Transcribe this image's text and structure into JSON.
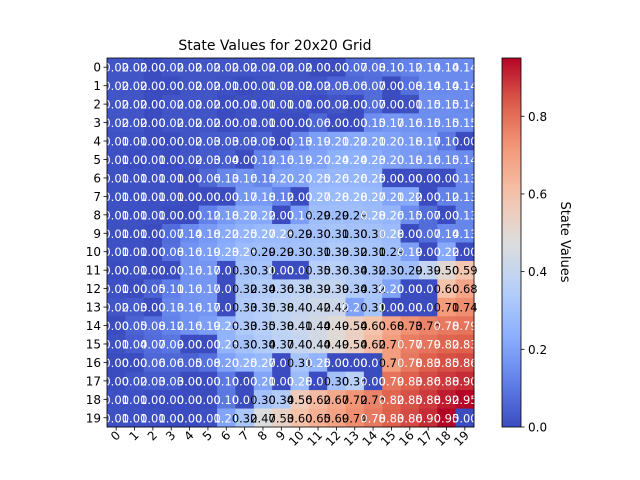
{
  "chart_data": {
    "type": "heatmap",
    "title": "State Values for 20x20 Grid",
    "xlabel": "",
    "ylabel": "",
    "x_ticks": [
      "0",
      "1",
      "2",
      "3",
      "4",
      "5",
      "6",
      "7",
      "8",
      "9",
      "10",
      "11",
      "12",
      "13",
      "14",
      "15",
      "16",
      "17",
      "18",
      "19"
    ],
    "y_ticks": [
      "0",
      "1",
      "2",
      "3",
      "4",
      "5",
      "6",
      "7",
      "8",
      "9",
      "10",
      "11",
      "12",
      "13",
      "14",
      "15",
      "16",
      "17",
      "18",
      "19"
    ],
    "colormap": "coolwarm",
    "vmin": 0.0,
    "vmax": 0.95,
    "colorbar": {
      "label": "State Values",
      "ticks": [
        "0.0",
        "0.2",
        "0.4",
        "0.6",
        "0.8"
      ],
      "tick_values": [
        0.0,
        0.2,
        0.4,
        0.6,
        0.8
      ]
    },
    "values": [
      [
        0.02,
        0.02,
        0.0,
        0.02,
        0.02,
        0.02,
        0.02,
        0.02,
        0.02,
        0.02,
        0.02,
        0.0,
        0.0,
        0.07,
        0.08,
        0.1,
        0.12,
        0.14,
        0.14,
        0.14
      ],
      [
        0.02,
        0.02,
        0.0,
        0.0,
        0.02,
        0.02,
        0.01,
        0.0,
        0.01,
        0.02,
        0.02,
        0.02,
        0.05,
        0.06,
        0.07,
        0.0,
        0.08,
        0.14,
        0.14,
        0.14
      ],
      [
        0.02,
        0.02,
        0.0,
        0.02,
        0.02,
        0.02,
        0.0,
        0.01,
        0.01,
        0.01,
        0.01,
        0.0,
        0.02,
        0.0,
        0.07,
        0.0,
        0.01,
        0.15,
        0.15,
        0.14
      ],
      [
        0.02,
        0.02,
        0.0,
        0.02,
        0.02,
        0.02,
        0.0,
        0.01,
        0.01,
        0.0,
        0.0,
        0.06,
        0.0,
        0.0,
        0.15,
        0.17,
        0.16,
        0.15,
        0.15,
        0.15
      ],
      [
        0.01,
        0.01,
        0.0,
        0.0,
        0.02,
        0.03,
        0.03,
        0.03,
        0.05,
        0.0,
        0.13,
        0.19,
        0.21,
        0.22,
        0.21,
        0.2,
        0.18,
        0.17,
        0.1,
        0.0
      ],
      [
        0.01,
        0.0,
        0.01,
        0.0,
        0.02,
        0.03,
        0.04,
        0.0,
        0.12,
        0.16,
        0.19,
        0.2,
        0.24,
        0.24,
        0.23,
        0.2,
        0.18,
        0.16,
        0.15,
        0.14
      ],
      [
        0.01,
        0.01,
        0.01,
        0.01,
        0.0,
        0.06,
        0.13,
        0.16,
        0.13,
        0.2,
        0.2,
        0.25,
        0.26,
        0.26,
        0.25,
        0.0,
        0.0,
        0.0,
        0.0,
        0.13
      ],
      [
        0.01,
        0.01,
        0.01,
        0.01,
        0.0,
        0.0,
        0.0,
        0.17,
        0.18,
        0.12,
        0.0,
        0.27,
        0.28,
        0.28,
        0.27,
        0.21,
        0.22,
        0.0,
        0.12,
        0.13
      ],
      [
        0.01,
        0.01,
        0.01,
        0.0,
        0.0,
        0.12,
        0.18,
        0.22,
        0.22,
        0.0,
        0.19,
        0.29,
        0.29,
        0.29,
        0.28,
        0.26,
        0.15,
        0.07,
        0.0,
        0.13
      ],
      [
        0.01,
        0.01,
        0.0,
        0.07,
        0.14,
        0.18,
        0.22,
        0.25,
        0.27,
        0.28,
        0.29,
        0.3,
        0.31,
        0.3,
        0.3,
        0.28,
        0.0,
        0.07,
        0.14,
        0.13
      ],
      [
        0.01,
        0.01,
        0.0,
        0.08,
        0.16,
        0.19,
        0.23,
        0.28,
        0.29,
        0.29,
        0.3,
        0.31,
        0.33,
        0.32,
        0.31,
        0.29,
        0.19,
        0.0,
        0.22,
        0.0
      ],
      [
        0.0,
        0.01,
        0.0,
        0.0,
        0.16,
        0.17,
        0.0,
        0.3,
        0.31,
        0.0,
        0.0,
        0.35,
        0.36,
        0.34,
        0.32,
        0.3,
        0.29,
        0.39,
        0.5,
        0.59
      ],
      [
        0.01,
        0.0,
        0.05,
        0.11,
        0.16,
        0.17,
        0.0,
        0.32,
        0.34,
        0.36,
        0.38,
        0.39,
        0.39,
        0.34,
        0.32,
        0.2,
        0.0,
        0.0,
        0.6,
        0.68
      ],
      [
        0.02,
        0.03,
        0.0,
        0.13,
        0.16,
        0.17,
        0.0,
        0.33,
        0.35,
        0.38,
        0.4,
        0.42,
        0.42,
        0.2,
        0.31,
        0.0,
        0.0,
        0.0,
        0.71,
        0.74
      ],
      [
        0.0,
        0.05,
        0.08,
        0.12,
        0.16,
        0.19,
        0.25,
        0.33,
        0.35,
        0.38,
        0.41,
        0.44,
        0.49,
        0.54,
        0.6,
        0.68,
        0.73,
        0.76,
        0.78,
        0.79
      ],
      [
        0.01,
        0.04,
        0.07,
        0.09,
        0.0,
        0.0,
        0.25,
        0.3,
        0.34,
        0.37,
        0.4,
        0.44,
        0.49,
        0.54,
        0.62,
        0.7,
        0.77,
        0.79,
        0.82,
        0.83
      ],
      [
        0.0,
        0.0,
        0.06,
        0.06,
        0.05,
        0.08,
        0.2,
        0.25,
        0.27,
        0.0,
        0.31,
        0.25,
        0.0,
        0.0,
        0.0,
        0.7,
        0.78,
        0.83,
        0.85,
        0.86
      ],
      [
        0.0,
        0.02,
        0.03,
        0.03,
        0.0,
        0.0,
        0.1,
        0.0,
        0.21,
        0.0,
        0.28,
        0.0,
        0.3,
        0.36,
        0.0,
        0.79,
        0.83,
        0.86,
        0.88,
        0.9
      ],
      [
        0.01,
        0.01,
        0.0,
        0.0,
        0.0,
        0.0,
        0.1,
        0.0,
        0.3,
        0.34,
        0.56,
        0.62,
        0.67,
        0.72,
        0.76,
        0.82,
        0.85,
        0.88,
        0.92,
        0.95
      ],
      [
        0.01,
        0.01,
        0.01,
        0.0,
        0.0,
        0.01,
        0.21,
        0.32,
        0.47,
        0.53,
        0.6,
        0.65,
        0.69,
        0.74,
        0.78,
        0.83,
        0.86,
        0.9,
        0.95,
        0.0
      ]
    ]
  }
}
